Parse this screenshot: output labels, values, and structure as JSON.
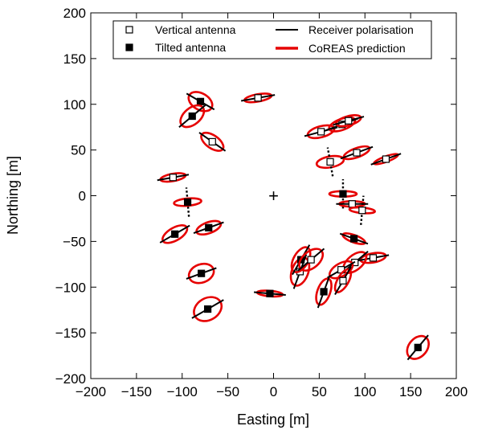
{
  "chart_data": {
    "type": "scatter",
    "xlabel": "Easting [m]",
    "ylabel": "Northing [m]",
    "xlim": [
      -200,
      200
    ],
    "ylim": [
      -200,
      200
    ],
    "xticks": [
      -200,
      -150,
      -100,
      -50,
      0,
      50,
      100,
      150,
      200
    ],
    "yticks": [
      -200,
      -150,
      -100,
      -50,
      0,
      50,
      100,
      150,
      200
    ],
    "xtick_labels": [
      "−200",
      "−150",
      "−100",
      "−50",
      "0",
      "50",
      "100",
      "150",
      "200"
    ],
    "ytick_labels": [
      "−200",
      "−150",
      "−100",
      "−50",
      "0",
      "50",
      "100",
      "150",
      "200"
    ],
    "grid": false,
    "legend_position": "top",
    "legend": [
      {
        "label": "Vertical antenna",
        "marker": "open-square"
      },
      {
        "label": "Tilted antenna",
        "marker": "filled-square"
      },
      {
        "label": "Receiver polarisation",
        "marker": "black-line"
      },
      {
        "label": "CoREAS prediction",
        "marker": "red-ellipse"
      }
    ],
    "core_marker": {
      "x": 0,
      "y": 0,
      "symbol": "+"
    },
    "stations": [
      {
        "type": "vertical",
        "x": -17,
        "y": 107,
        "angle": 10,
        "a": 15,
        "b": 4,
        "line": "solid"
      },
      {
        "type": "tilted",
        "x": -80,
        "y": 103,
        "angle": -30,
        "a": 14,
        "b": 9,
        "line": "solid"
      },
      {
        "type": "tilted",
        "x": -89,
        "y": 87,
        "angle": 40,
        "a": 15,
        "b": 9,
        "line": "solid"
      },
      {
        "type": "vertical",
        "x": -67,
        "y": 59,
        "angle": -35,
        "a": 14,
        "b": 7,
        "line": "solid"
      },
      {
        "type": "vertical",
        "x": -110,
        "y": 20,
        "angle": 10,
        "a": 14,
        "b": 4,
        "line": "solid"
      },
      {
        "type": "tilted",
        "x": -94,
        "y": -7,
        "angle": 5,
        "a": 15,
        "b": 4,
        "line": "dotted"
      },
      {
        "type": "tilted",
        "x": -108,
        "y": -42,
        "angle": 30,
        "a": 15,
        "b": 7,
        "line": "solid"
      },
      {
        "type": "tilted",
        "x": -71,
        "y": -35,
        "angle": 20,
        "a": 14,
        "b": 6,
        "line": "solid"
      },
      {
        "type": "tilted",
        "x": -79,
        "y": -85,
        "angle": 20,
        "a": 14,
        "b": 10,
        "line": "solid"
      },
      {
        "type": "tilted",
        "x": -72,
        "y": -124,
        "angle": 30,
        "a": 16,
        "b": 12,
        "line": "solid"
      },
      {
        "type": "tilted",
        "x": -4,
        "y": -107,
        "angle": -5,
        "a": 14,
        "b": 3,
        "line": "solid"
      },
      {
        "type": "vertical",
        "x": 52,
        "y": 70,
        "angle": 15,
        "a": 15,
        "b": 6,
        "line": "solid"
      },
      {
        "type": "vertical",
        "x": 75,
        "y": 78,
        "angle": 20,
        "a": 15,
        "b": 6,
        "line": "solid"
      },
      {
        "type": "vertical",
        "x": 82,
        "y": 82,
        "angle": 15,
        "a": 14,
        "b": 5,
        "line": "solid"
      },
      {
        "type": "vertical",
        "x": 62,
        "y": 37,
        "angle": 10,
        "a": 15,
        "b": 6,
        "line": "dotted"
      },
      {
        "type": "vertical",
        "x": 91,
        "y": 47,
        "angle": 20,
        "a": 15,
        "b": 5,
        "line": "solid"
      },
      {
        "type": "vertical",
        "x": 123,
        "y": 40,
        "angle": 20,
        "a": 14,
        "b": 3,
        "line": "solid"
      },
      {
        "type": "tilted",
        "x": 76,
        "y": 2,
        "angle": 0,
        "a": 15,
        "b": 3,
        "line": "dotted"
      },
      {
        "type": "vertical",
        "x": 86,
        "y": -9,
        "angle": 0,
        "a": 14,
        "b": 3,
        "line": "solid"
      },
      {
        "type": "vertical",
        "x": 97,
        "y": -16,
        "angle": -5,
        "a": 14,
        "b": 3,
        "line": "dotted"
      },
      {
        "type": "tilted",
        "x": 88,
        "y": -47,
        "angle": -20,
        "a": 13,
        "b": 4,
        "line": "solid"
      },
      {
        "type": "vertical",
        "x": 109,
        "y": -68,
        "angle": 10,
        "a": 14,
        "b": 5,
        "line": "solid"
      },
      {
        "type": "vertical",
        "x": 89,
        "y": -73,
        "angle": 40,
        "a": 15,
        "b": 8,
        "line": "solid"
      },
      {
        "type": "vertical",
        "x": 74,
        "y": -81,
        "angle": 30,
        "a": 14,
        "b": 7,
        "line": "solid"
      },
      {
        "type": "vertical",
        "x": 76,
        "y": -93,
        "angle": 60,
        "a": 14,
        "b": 6,
        "line": "solid"
      },
      {
        "type": "vertical",
        "x": 29,
        "y": -83,
        "angle": 70,
        "a": 16,
        "b": 9,
        "line": "solid"
      },
      {
        "type": "tilted",
        "x": 30,
        "y": -70,
        "angle": 60,
        "a": 15,
        "b": 8,
        "line": "solid"
      },
      {
        "type": "vertical",
        "x": 41,
        "y": -70,
        "angle": 40,
        "a": 15,
        "b": 9,
        "line": "solid"
      },
      {
        "type": "tilted",
        "x": 55,
        "y": -105,
        "angle": 70,
        "a": 15,
        "b": 7,
        "line": "solid"
      },
      {
        "type": "tilted",
        "x": 158,
        "y": -166,
        "angle": 50,
        "a": 14,
        "b": 10,
        "line": "solid"
      }
    ]
  }
}
